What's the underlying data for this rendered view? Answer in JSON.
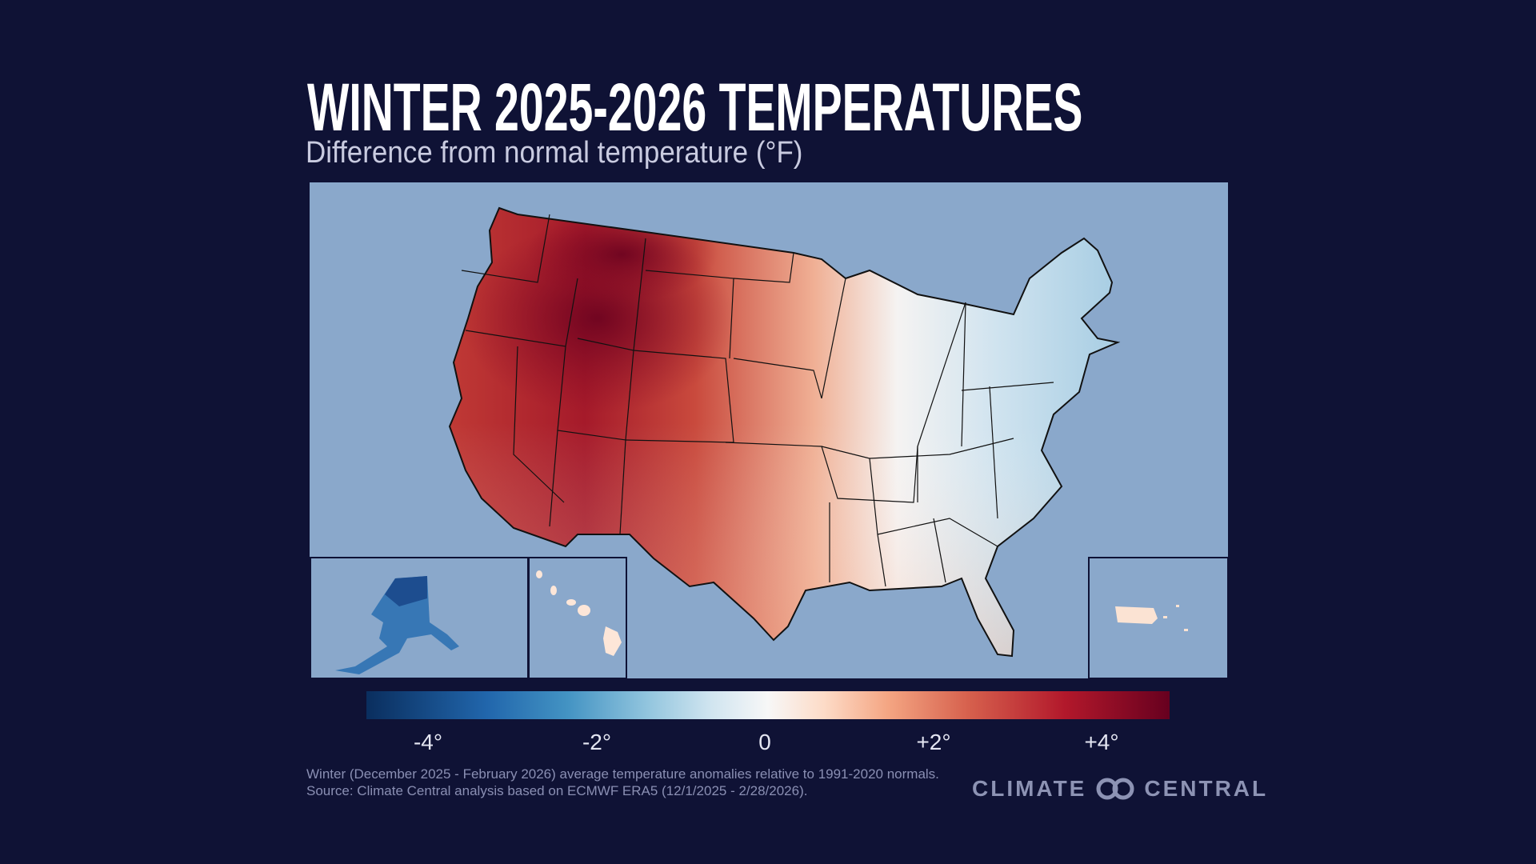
{
  "header": {
    "title": "WINTER 2025-2026 TEMPERATURES",
    "subtitle": "Difference from normal temperature (°F)"
  },
  "map": {
    "region": "Contiguous United States with Alaska, Hawaii and Puerto Rico insets",
    "ocean_color": "#8aa8cb",
    "pattern": "Warm anomalies across the West and Plains (strongest over Utah, Wyoming, Colorado, Montana); near normal to cooler in the Great Lakes, Ohio Valley and Northeast; Alaska colder than normal; Hawaii and Puerto Rico slightly warm"
  },
  "legend": {
    "ticks": [
      "-4°",
      "-2°",
      "0",
      "+2°",
      "+4°"
    ],
    "tick_values": [
      -4,
      -2,
      0,
      2,
      4
    ],
    "range": [
      -4.8,
      4.8
    ],
    "colors": [
      "#0a2e5e",
      "#2166ac",
      "#92c5de",
      "#f7f7f7",
      "#f4a582",
      "#b2182b",
      "#67001f"
    ]
  },
  "footer": {
    "note": "Winter (December 2025 - February 2026) average temperature anomalies relative to 1991-2020 normals.",
    "source": "Source: Climate Central analysis based on ECMWF ERA5 (12/1/2025 - 2/28/2026).",
    "logo_left": "CLIMATE",
    "logo_right": "CENTRAL"
  }
}
